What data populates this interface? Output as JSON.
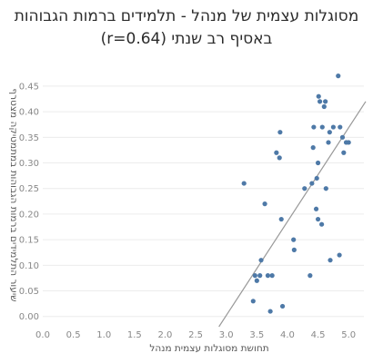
{
  "chart_data": {
    "type": "scatter",
    "title": "מסוגלות עצמית של מנהל - תלמידים ברמות הגבוהות",
    "subtitle": "באסיף רב שנתי (r=0.64)",
    "xlabel": "תחושת מסוגלות עצמית מנהל",
    "ylabel": "שיעור התלמידים ברמות הגבוהות במתמטיקה מצטרף",
    "xlim": [
      0,
      5.25
    ],
    "ylim": [
      -0.02,
      0.48
    ],
    "x_ticks": [
      "0.0",
      "0.5",
      "1.0",
      "1.5",
      "2.0",
      "2.5",
      "3.0",
      "3.5",
      "4.0",
      "4.5",
      "5.0"
    ],
    "y_ticks": [
      "0.00",
      "0.05",
      "0.10",
      "0.15",
      "0.20",
      "0.25",
      "0.30",
      "0.35",
      "0.40",
      "0.45"
    ],
    "grid": "horizontal",
    "point_color": "#4e79a7",
    "trend_color": "#999999",
    "trend_line": [
      [
        2.88,
        -0.02
      ],
      [
        5.28,
        0.42
      ]
    ],
    "points": [
      [
        3.29,
        0.26
      ],
      [
        3.44,
        0.03
      ],
      [
        3.47,
        0.08
      ],
      [
        3.5,
        0.07
      ],
      [
        3.55,
        0.08
      ],
      [
        3.57,
        0.11
      ],
      [
        3.63,
        0.22
      ],
      [
        3.68,
        0.08
      ],
      [
        3.72,
        0.01
      ],
      [
        3.75,
        0.08
      ],
      [
        3.82,
        0.32
      ],
      [
        3.87,
        0.31
      ],
      [
        3.88,
        0.36
      ],
      [
        3.9,
        0.19
      ],
      [
        3.92,
        0.02
      ],
      [
        4.1,
        0.15
      ],
      [
        4.11,
        0.13
      ],
      [
        4.28,
        0.25
      ],
      [
        4.37,
        0.08
      ],
      [
        4.4,
        0.26
      ],
      [
        4.42,
        0.33
      ],
      [
        4.43,
        0.37
      ],
      [
        4.47,
        0.21
      ],
      [
        4.48,
        0.27
      ],
      [
        4.5,
        0.3
      ],
      [
        4.5,
        0.19
      ],
      [
        4.51,
        0.43
      ],
      [
        4.53,
        0.42
      ],
      [
        4.56,
        0.18
      ],
      [
        4.57,
        0.37
      ],
      [
        4.6,
        0.41
      ],
      [
        4.62,
        0.42
      ],
      [
        4.63,
        0.25
      ],
      [
        4.67,
        0.34
      ],
      [
        4.69,
        0.36
      ],
      [
        4.7,
        0.11
      ],
      [
        4.75,
        0.37
      ],
      [
        4.83,
        0.47
      ],
      [
        4.85,
        0.12
      ],
      [
        4.86,
        0.37
      ],
      [
        4.9,
        0.35
      ],
      [
        4.92,
        0.32
      ],
      [
        4.96,
        0.34
      ],
      [
        5.0,
        0.34
      ]
    ]
  }
}
